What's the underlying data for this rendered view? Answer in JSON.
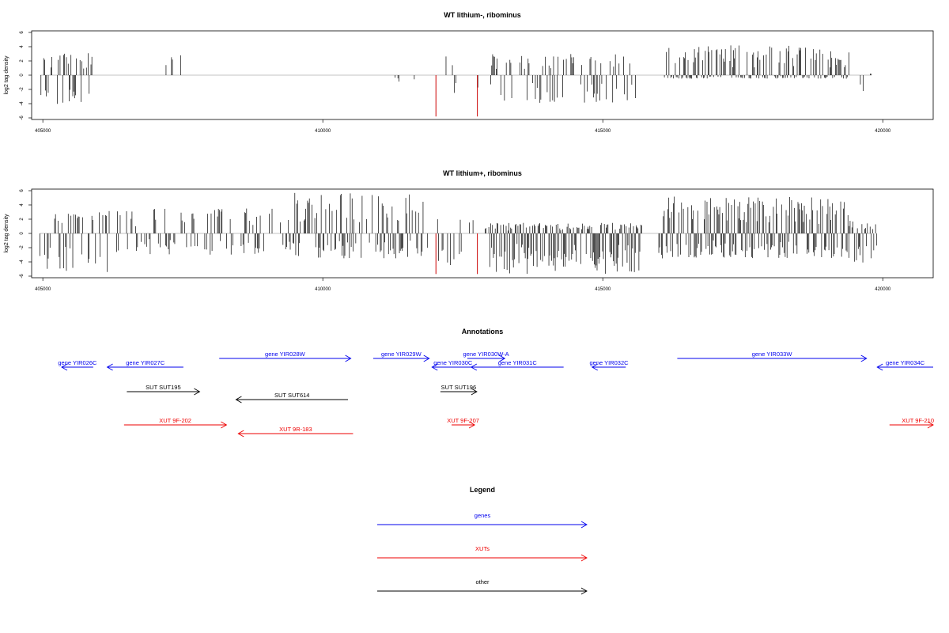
{
  "chart_data": [
    {
      "type": "bar",
      "title": "WT lithium-, ribominus",
      "ylabel": "log2 tag density",
      "xlim": [
        404800,
        420900
      ],
      "ylim": [
        -6,
        6
      ],
      "x_ticks": [
        405000,
        410000,
        415000,
        420000
      ],
      "y_ticks": [
        -6,
        -4,
        -2,
        0,
        2,
        4,
        6
      ],
      "x_tick_labels": [
        "405000",
        "410000",
        "415000",
        "420000"
      ],
      "y_tick_labels": [
        "-6",
        "-4",
        "-2",
        "0",
        "2",
        "4",
        "6"
      ],
      "base_color": "#000000",
      "highlight_color": "#cc0000",
      "regions": [
        {
          "x": [
            404950,
            405900
          ],
          "density": 0.55,
          "pos_max": 3.5,
          "neg_max": 4.2
        },
        {
          "x": [
            407200,
            407500
          ],
          "density": 0.04,
          "pos_max": 2.8,
          "neg_max": 1.0
        },
        {
          "x": [
            408600,
            408700
          ],
          "density": 0.02,
          "pos_max": 0.5,
          "neg_max": 2.2
        },
        {
          "x": [
            410100,
            410200
          ],
          "density": 0.03,
          "pos_max": 2.8,
          "neg_max": 2.0
        },
        {
          "x": [
            411000,
            411700
          ],
          "density": 0.12,
          "pos_max": 3.1,
          "neg_max": 1.0
        },
        {
          "x": [
            412200,
            412900
          ],
          "density": 0.15,
          "pos_max": 3.6,
          "neg_max": 2.5
        },
        {
          "x": [
            413000,
            415600
          ],
          "density": 0.45,
          "pos_max": 3.0,
          "neg_max": 4.0
        },
        {
          "x": [
            416100,
            419400
          ],
          "density": 0.75,
          "pos_max": 4.2,
          "neg_max": 0.5
        },
        {
          "x": [
            419600,
            419800
          ],
          "density": 0.4,
          "pos_max": 0.3,
          "neg_max": 3.0
        }
      ],
      "highlights": [
        {
          "x": 412020,
          "y": -5.8
        },
        {
          "x": 412760,
          "y": -5.8
        }
      ]
    },
    {
      "type": "bar",
      "title": "WT lithium+, ribominus",
      "ylabel": "log2 tag density",
      "xlim": [
        404800,
        420900
      ],
      "ylim": [
        -6,
        6
      ],
      "x_ticks": [
        405000,
        410000,
        415000,
        420000
      ],
      "y_ticks": [
        -6,
        -4,
        -2,
        0,
        2,
        4,
        6
      ],
      "x_tick_labels": [
        "405000",
        "410000",
        "415000",
        "420000"
      ],
      "y_tick_labels": [
        "-6",
        "-4",
        "-2",
        "0",
        "2",
        "4",
        "6"
      ],
      "base_color": "#000000",
      "highlight_color": "#cc0000",
      "regions": [
        {
          "x": [
            404950,
            406200
          ],
          "density": 0.5,
          "pos_max": 3.2,
          "neg_max": 5.5
        },
        {
          "x": [
            406300,
            409500
          ],
          "density": 0.45,
          "pos_max": 3.5,
          "neg_max": 3.0
        },
        {
          "x": [
            409500,
            411900
          ],
          "density": 0.55,
          "pos_max": 5.7,
          "neg_max": 3.5
        },
        {
          "x": [
            412000,
            412800
          ],
          "density": 0.35,
          "pos_max": 2.5,
          "neg_max": 5.0
        },
        {
          "x": [
            412900,
            415700
          ],
          "density": 0.95,
          "pos_max": 1.5,
          "neg_max": 5.7
        },
        {
          "x": [
            416000,
            419400
          ],
          "density": 0.85,
          "pos_max": 5.2,
          "neg_max": 3.5
        },
        {
          "x": [
            419400,
            419900
          ],
          "density": 0.7,
          "pos_max": 1.8,
          "neg_max": 4.2
        }
      ],
      "highlights": [
        {
          "x": 412020,
          "y": -5.7
        },
        {
          "x": 412760,
          "y": -5.7
        }
      ]
    }
  ],
  "annotations": {
    "title": "Annotations",
    "xlim": [
      404800,
      420900
    ],
    "colors": {
      "gene": "#0000ee",
      "sut": "#000000",
      "xut": "#ee0000"
    },
    "features": [
      {
        "label": "gene YIR026C",
        "kind": "gene",
        "start": 404950,
        "end": 405900,
        "strand": "-",
        "row": 1
      },
      {
        "label": "gene YIR027C",
        "kind": "gene",
        "start": 406150,
        "end": 407510,
        "strand": "-",
        "row": 1
      },
      {
        "label": "gene YIR028W",
        "kind": "gene",
        "start": 408150,
        "end": 410500,
        "strand": "+",
        "row": 0
      },
      {
        "label": "gene YIR029W",
        "kind": "gene",
        "start": 410900,
        "end": 411900,
        "strand": "+",
        "row": 0
      },
      {
        "label": "gene YIR030C",
        "kind": "gene",
        "start": 411950,
        "end": 412700,
        "strand": "-",
        "row": 1
      },
      {
        "label": "gene YIR030W-A",
        "kind": "gene",
        "start": 412580,
        "end": 413250,
        "strand": "+",
        "row": 0
      },
      {
        "label": "gene YIR031C",
        "kind": "gene",
        "start": 412650,
        "end": 414300,
        "strand": "-",
        "row": 1
      },
      {
        "label": "gene YIR032C",
        "kind": "gene",
        "start": 414810,
        "end": 415410,
        "strand": "-",
        "row": 1
      },
      {
        "label": "gene YIR033W",
        "kind": "gene",
        "start": 416330,
        "end": 419710,
        "strand": "+",
        "row": 0
      },
      {
        "label": "gene YIR034C",
        "kind": "gene",
        "start": 419900,
        "end": 420900,
        "strand": "-",
        "row": 1
      },
      {
        "label": "SUT SUT195",
        "kind": "sut",
        "start": 406500,
        "end": 407800,
        "strand": "+",
        "row": 2
      },
      {
        "label": "SUT SUT614",
        "kind": "sut",
        "start": 408450,
        "end": 410450,
        "strand": "-",
        "row": 3
      },
      {
        "label": "SUT SUT196",
        "kind": "sut",
        "start": 412100,
        "end": 412750,
        "strand": "+",
        "row": 2
      },
      {
        "label": "XUT 9F-202",
        "kind": "xut",
        "start": 406450,
        "end": 408280,
        "strand": "+",
        "row": 4
      },
      {
        "label": "XUT 9R-183",
        "kind": "xut",
        "start": 408490,
        "end": 410540,
        "strand": "-",
        "row": 5
      },
      {
        "label": "XUT 9F-207",
        "kind": "xut",
        "start": 412300,
        "end": 412710,
        "strand": "+",
        "row": 4
      },
      {
        "label": "XUT 9F-210",
        "kind": "xut",
        "start": 420120,
        "end": 420900,
        "strand": "+",
        "row": 4
      }
    ]
  },
  "legend": {
    "title": "Legend",
    "items": [
      {
        "label": "genes",
        "color": "#0000ee"
      },
      {
        "label": "XUTs",
        "color": "#ee0000"
      },
      {
        "label": "other",
        "color": "#000000"
      }
    ]
  }
}
